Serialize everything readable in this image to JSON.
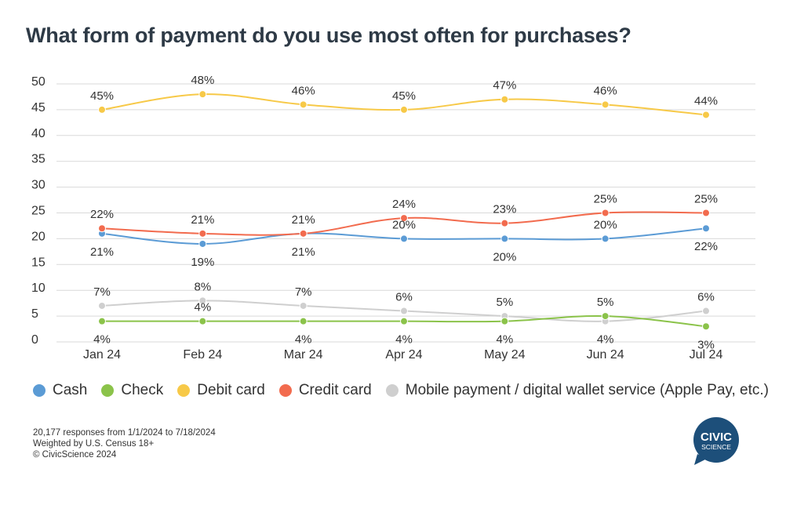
{
  "title": "What form of payment do you use most often for purchases?",
  "chart_data": {
    "type": "line",
    "title": "What form of payment do you use most often for purchases?",
    "categories": [
      "Jan 24",
      "Feb 24",
      "Mar 24",
      "Apr 24",
      "May 24",
      "Jun 24",
      "Jul 24"
    ],
    "ylim": [
      0,
      50
    ],
    "yticks": [
      0,
      5,
      10,
      15,
      20,
      25,
      30,
      35,
      40,
      45,
      50
    ],
    "grid": true,
    "legend_position": "bottom",
    "value_suffix": "%",
    "series": [
      {
        "name": "Cash",
        "color": "#5b9bd5",
        "values": [
          21,
          19,
          21,
          20,
          20,
          20,
          22
        ],
        "label_pos": [
          "below",
          "below",
          "below",
          "above",
          "below",
          "above",
          "below"
        ]
      },
      {
        "name": "Check",
        "color": "#8bc34a",
        "values": [
          4,
          4,
          4,
          4,
          4,
          5,
          3
        ],
        "label_pos": [
          "below",
          "above",
          "below",
          "below",
          "below",
          "above",
          "below"
        ]
      },
      {
        "name": "Debit card",
        "color": "#f7c948",
        "values": [
          45,
          48,
          46,
          45,
          47,
          46,
          44
        ],
        "label_pos": [
          "above",
          "above",
          "above",
          "above",
          "above",
          "above",
          "above"
        ]
      },
      {
        "name": "Credit card",
        "color": "#f26b4e",
        "values": [
          22,
          21,
          21,
          24,
          23,
          25,
          25
        ],
        "label_pos": [
          "above",
          "above",
          "above",
          "above",
          "above",
          "above",
          "above"
        ]
      },
      {
        "name": "Mobile payment / digital wallet service (Apple Pay, etc.)",
        "color": "#cfcfcf",
        "values": [
          7,
          8,
          7,
          6,
          5,
          4,
          6
        ],
        "label_pos": [
          "above",
          "above",
          "above",
          "above",
          "above",
          "below",
          "above"
        ]
      }
    ]
  },
  "footnotes": [
    "20,177 responses from 1/1/2024 to 7/18/2024",
    "Weighted by U.S. Census 18+",
    "© CivicScience 2024"
  ],
  "logo": {
    "line1": "CIVIC",
    "line2": "SCIENCE",
    "color": "#1d4f7a"
  }
}
